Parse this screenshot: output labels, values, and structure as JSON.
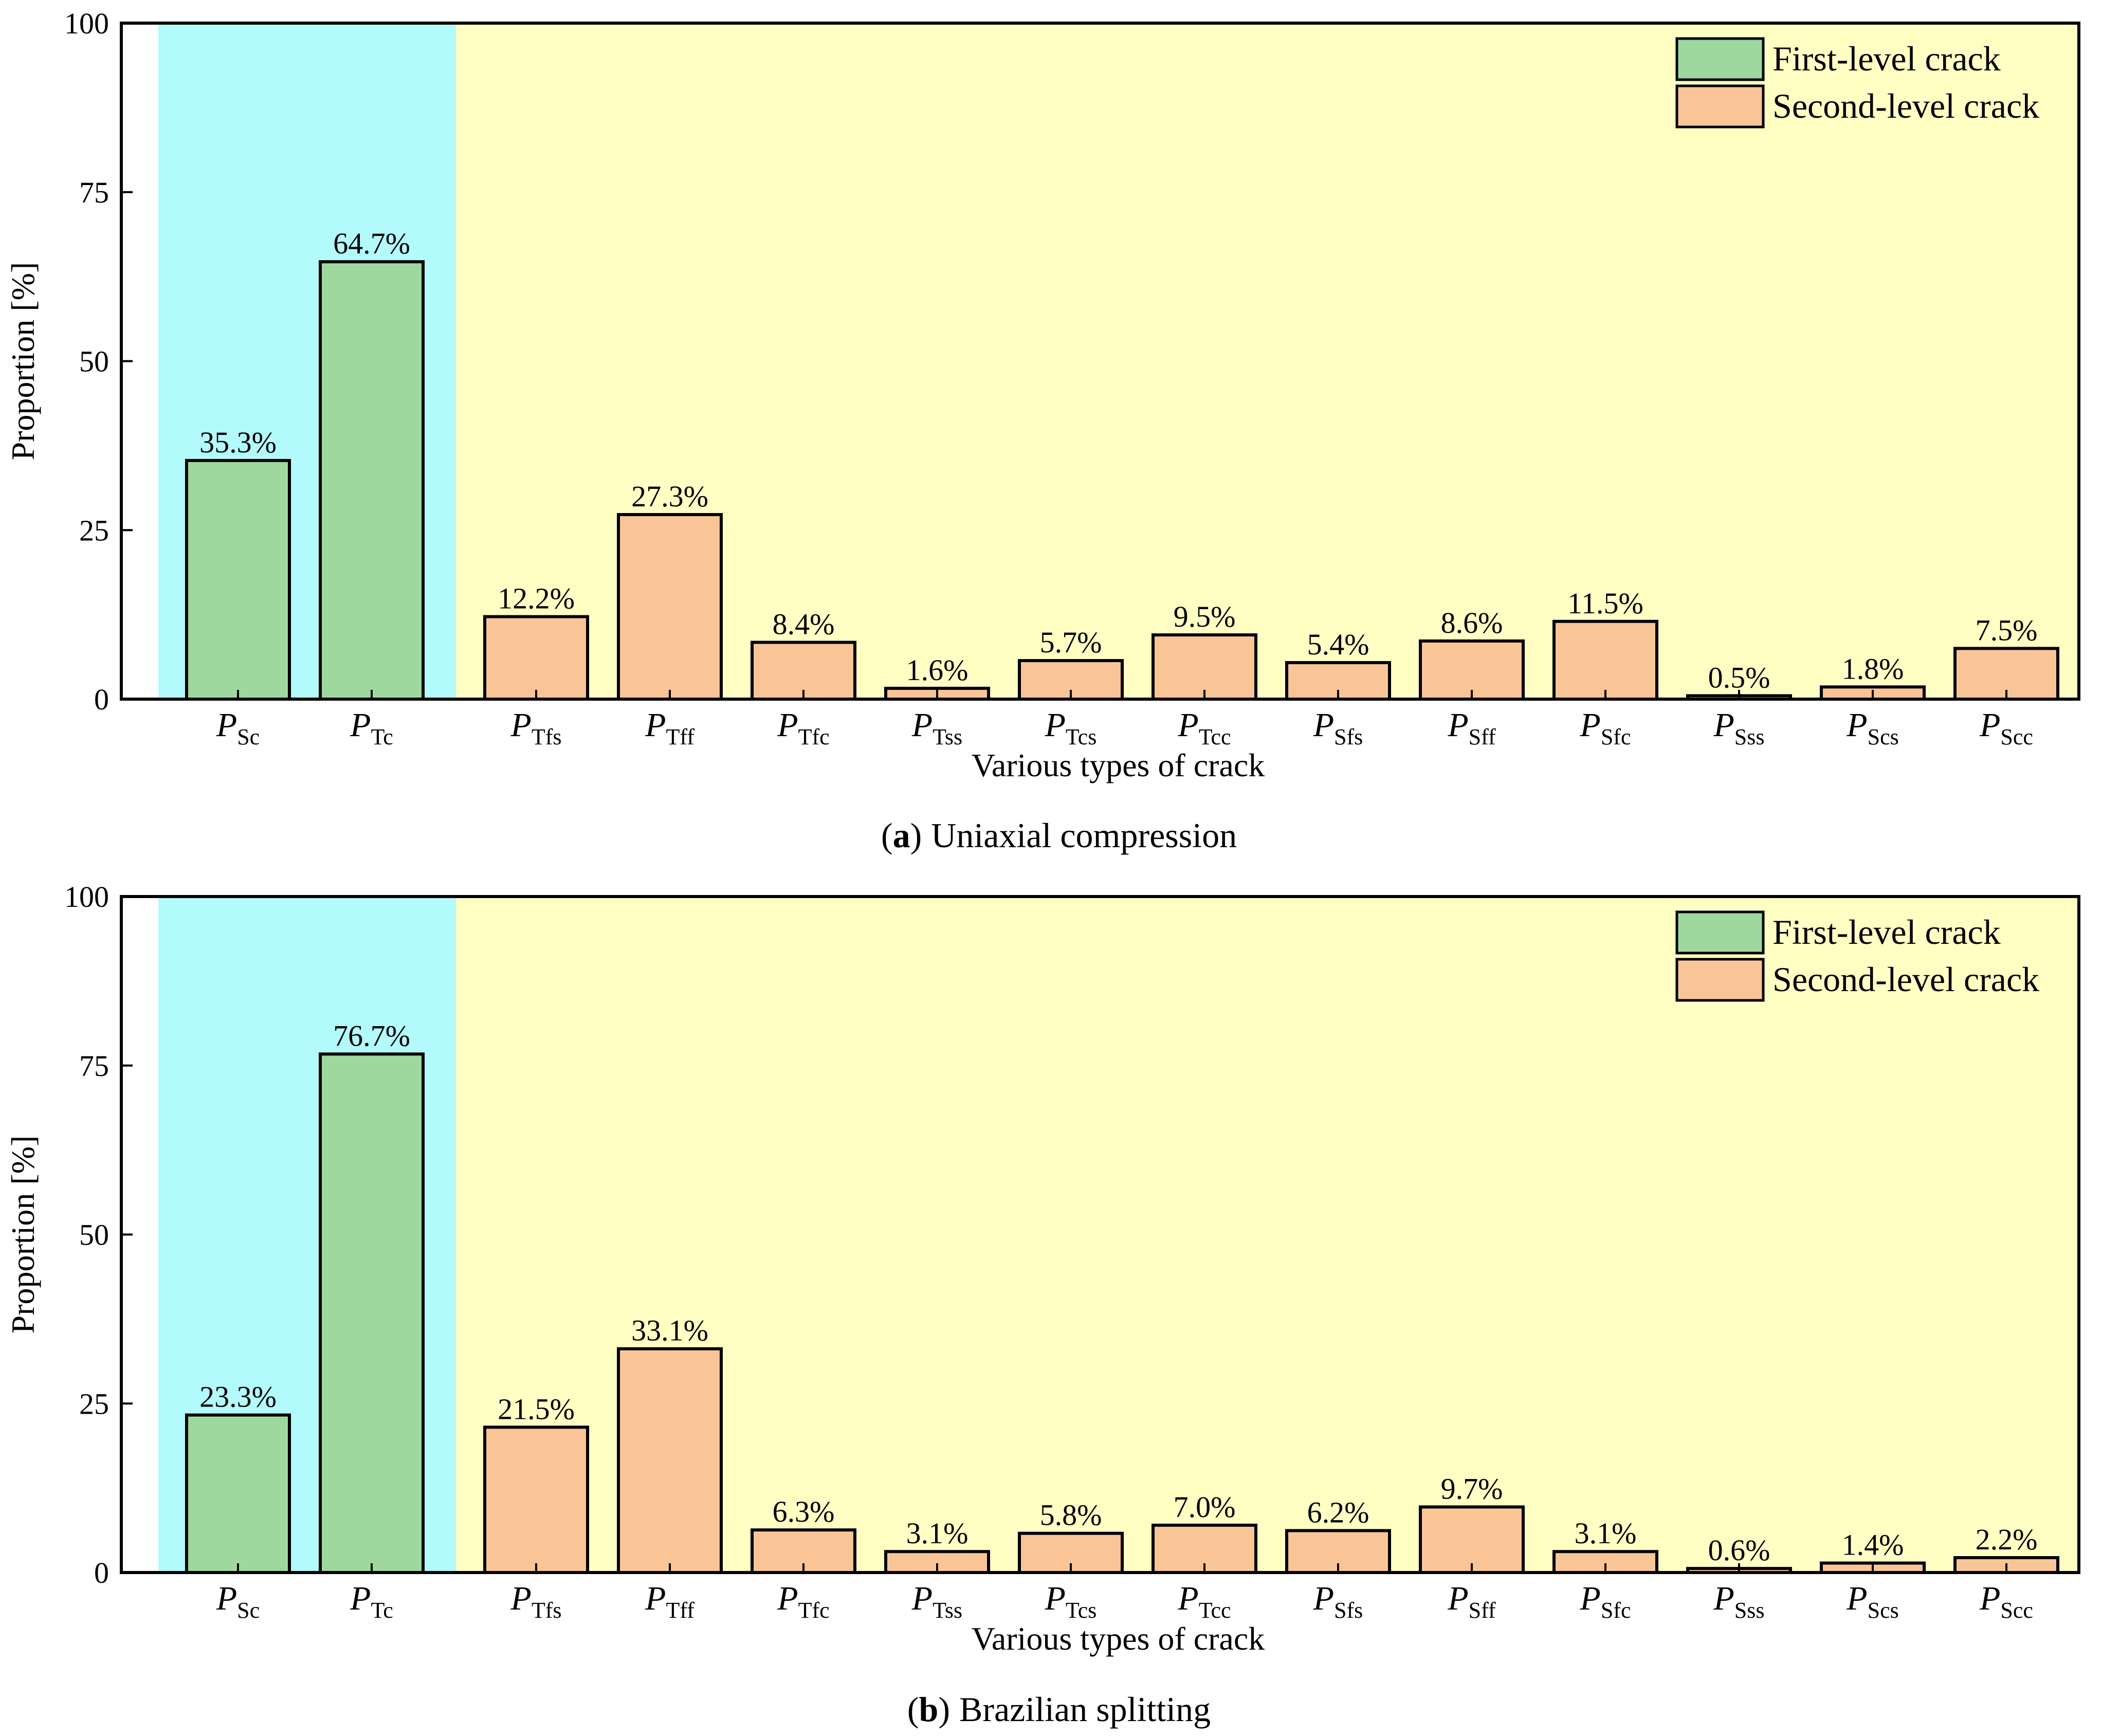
{
  "chart_data": [
    {
      "type": "bar",
      "panel": "a",
      "caption_letter": "a",
      "caption_text": "Uniaxial compression",
      "caption_open": "(",
      "caption_close": ")",
      "ylabel": "Proportion [%]",
      "xlabel": "Various types of crack",
      "ylim": [
        0,
        100
      ],
      "yticks": [
        "0",
        "25",
        "50",
        "75",
        "100"
      ],
      "legend": {
        "placement": "top-right",
        "entries": [
          "First-level crack",
          "Second-level crack"
        ]
      },
      "categories": [
        {
          "main": "P",
          "sub": "Sc"
        },
        {
          "main": "P",
          "sub": "Tc"
        },
        {
          "main": "P",
          "sub": "Tfs"
        },
        {
          "main": "P",
          "sub": "Tff"
        },
        {
          "main": "P",
          "sub": "Tfc"
        },
        {
          "main": "P",
          "sub": "Tss"
        },
        {
          "main": "P",
          "sub": "Tcs"
        },
        {
          "main": "P",
          "sub": "Tcc"
        },
        {
          "main": "P",
          "sub": "Sfs"
        },
        {
          "main": "P",
          "sub": "Sff"
        },
        {
          "main": "P",
          "sub": "Sfc"
        },
        {
          "main": "P",
          "sub": "Sss"
        },
        {
          "main": "P",
          "sub": "Scs"
        },
        {
          "main": "P",
          "sub": "Scc"
        }
      ],
      "values": [
        35.3,
        64.7,
        12.2,
        27.3,
        8.4,
        1.6,
        5.7,
        9.5,
        5.4,
        8.6,
        11.5,
        0.5,
        1.8,
        7.5
      ],
      "labels": [
        "35.3%",
        "64.7%",
        "12.2%",
        "27.3%",
        "8.4%",
        "1.6%",
        "5.7%",
        "9.5%",
        "5.4%",
        "8.6%",
        "11.5%",
        "0.5%",
        "1.8%",
        "7.5%"
      ],
      "series_index": [
        0,
        0,
        1,
        1,
        1,
        1,
        1,
        1,
        1,
        1,
        1,
        1,
        1,
        1
      ]
    },
    {
      "type": "bar",
      "panel": "b",
      "caption_letter": "b",
      "caption_text": "Brazilian splitting",
      "caption_open": "(",
      "caption_close": ")",
      "ylabel": "Proportion [%]",
      "xlabel": "Various types of crack",
      "ylim": [
        0,
        100
      ],
      "yticks": [
        "0",
        "25",
        "50",
        "75",
        "100"
      ],
      "legend": {
        "placement": "top-right",
        "entries": [
          "First-level crack",
          "Second-level crack"
        ]
      },
      "categories": [
        {
          "main": "P",
          "sub": "Sc"
        },
        {
          "main": "P",
          "sub": "Tc"
        },
        {
          "main": "P",
          "sub": "Tfs"
        },
        {
          "main": "P",
          "sub": "Tff"
        },
        {
          "main": "P",
          "sub": "Tfc"
        },
        {
          "main": "P",
          "sub": "Tss"
        },
        {
          "main": "P",
          "sub": "Tcs"
        },
        {
          "main": "P",
          "sub": "Tcc"
        },
        {
          "main": "P",
          "sub": "Sfs"
        },
        {
          "main": "P",
          "sub": "Sff"
        },
        {
          "main": "P",
          "sub": "Sfc"
        },
        {
          "main": "P",
          "sub": "Sss"
        },
        {
          "main": "P",
          "sub": "Scs"
        },
        {
          "main": "P",
          "sub": "Scc"
        }
      ],
      "values": [
        23.3,
        76.7,
        21.5,
        33.1,
        6.3,
        3.1,
        5.8,
        7.0,
        6.2,
        9.7,
        3.1,
        0.6,
        1.4,
        2.2
      ],
      "labels": [
        "23.3%",
        "76.7%",
        "21.5%",
        "33.1%",
        "6.3%",
        "3.1%",
        "5.8%",
        "7.0%",
        "6.2%",
        "9.7%",
        "3.1%",
        "0.6%",
        "1.4%",
        "2.2%"
      ],
      "series_index": [
        0,
        0,
        1,
        1,
        1,
        1,
        1,
        1,
        1,
        1,
        1,
        1,
        1,
        1
      ]
    }
  ],
  "colors": {
    "first_level": "#9fd89f",
    "second_level": "#f9c597",
    "region_first": "#b3fafd",
    "region_second": "#ffffc4",
    "axis": "#000000"
  }
}
